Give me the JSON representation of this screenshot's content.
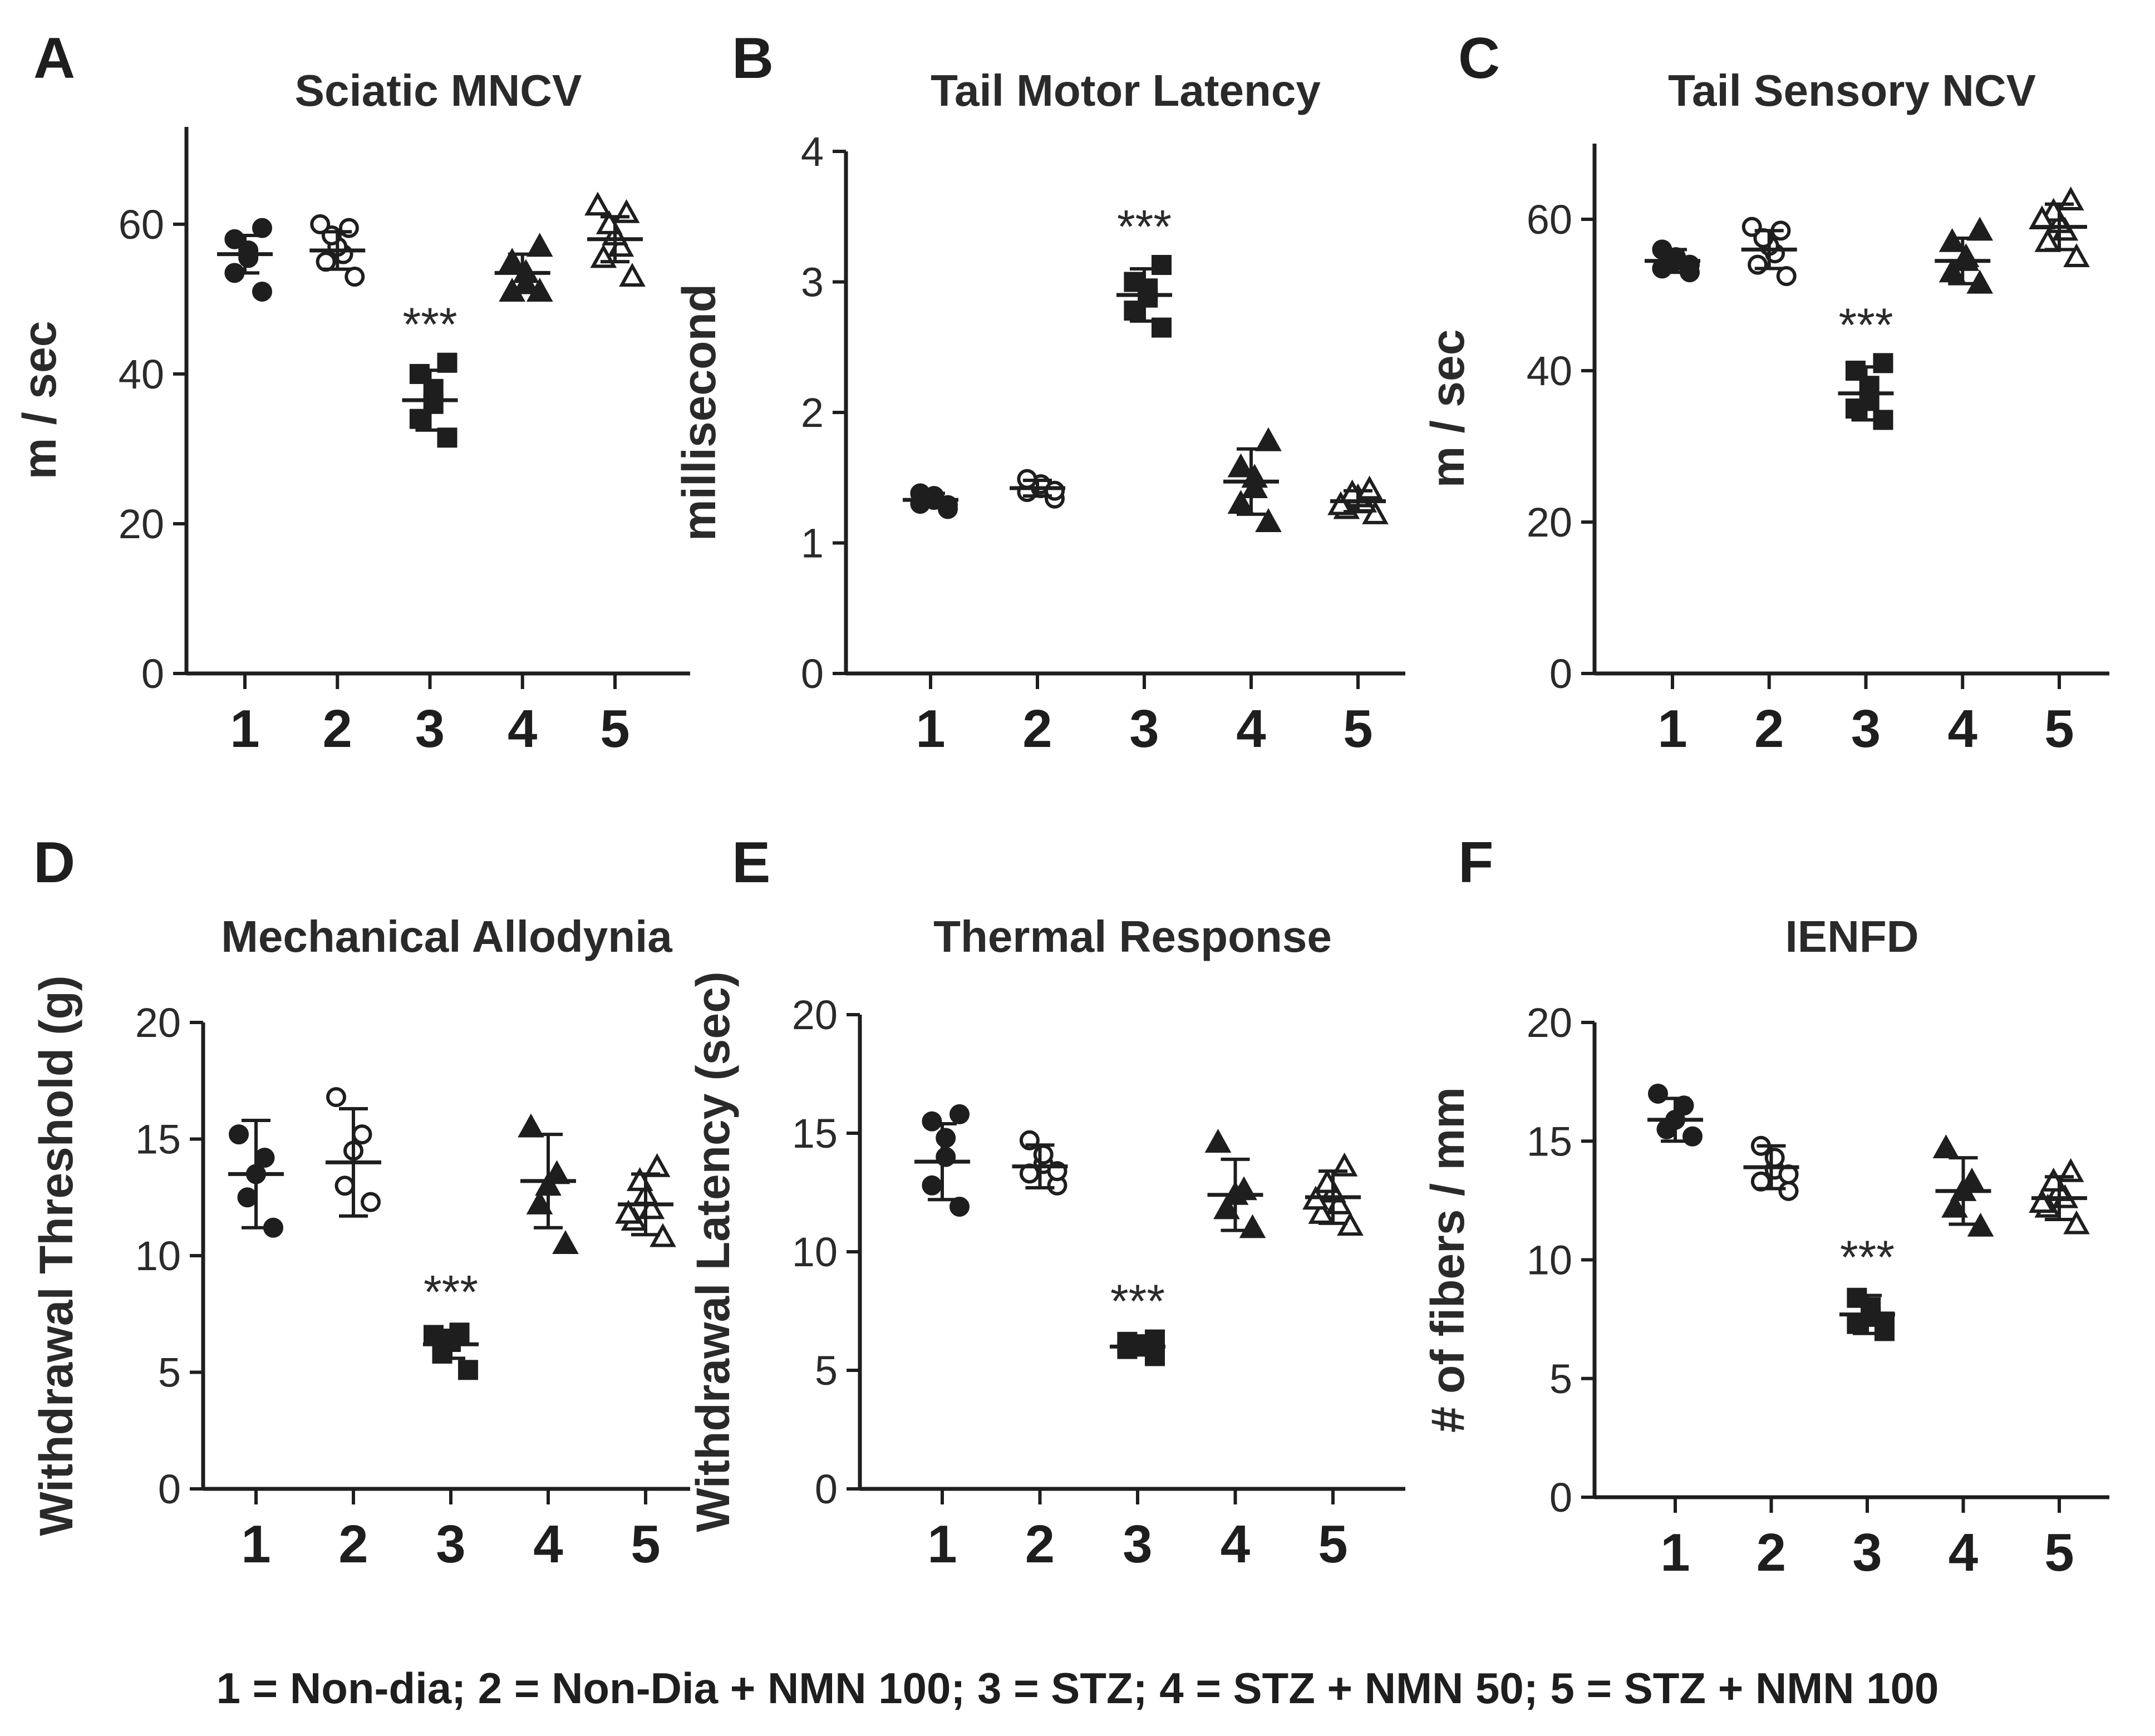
{
  "legend": "1 = Non-dia; 2 = Non-Dia + NMN 100; 3 = STZ; 4 = STZ + NMN 50; 5 = STZ + NMN 100",
  "colors": {
    "ink": "#1e1e1e",
    "background": "#ffffff"
  },
  "chart_data": [
    {
      "panel": "A",
      "type": "scatter",
      "title": "Sciatic MNCV",
      "ylabel": "m / sec",
      "xlabel": "",
      "ylim": [
        0,
        73
      ],
      "yticks": [
        0,
        20,
        40,
        60
      ],
      "groups": [
        {
          "label": "1",
          "marker": "filled-circle",
          "mean": 56.0,
          "sd": 2.5,
          "points": [
            51,
            53.5,
            55.5,
            56.5,
            58,
            59.5
          ]
        },
        {
          "label": "2",
          "marker": "open-circle",
          "mean": 56.5,
          "sd": 2.5,
          "points": [
            53,
            55,
            56,
            57,
            58.5,
            59.5,
            60
          ]
        },
        {
          "label": "3",
          "marker": "filled-square",
          "mean": 36.5,
          "sd": 4.0,
          "points": [
            31.5,
            34,
            36,
            38,
            40,
            41.5
          ]
        },
        {
          "label": "4",
          "marker": "filled-triangle",
          "mean": 53.5,
          "sd": 2.5,
          "points": [
            51,
            51,
            52,
            53.5,
            55,
            57
          ]
        },
        {
          "label": "5",
          "marker": "open-triangle",
          "mean": 58.0,
          "sd": 3.0,
          "points": [
            53,
            55.5,
            57,
            58.5,
            60,
            61.5,
            62.5
          ]
        }
      ],
      "significance": [
        {
          "group": "3",
          "text": "***"
        }
      ]
    },
    {
      "panel": "B",
      "type": "scatter",
      "title": "Tail Motor Latency",
      "ylabel": "millisecond",
      "xlabel": "",
      "ylim": [
        0,
        4
      ],
      "yticks": [
        0,
        1,
        2,
        3,
        4
      ],
      "groups": [
        {
          "label": "1",
          "marker": "filled-circle",
          "mean": 1.33,
          "sd": 0.05,
          "points": [
            1.26,
            1.3,
            1.33,
            1.36,
            1.38,
            1.29
          ]
        },
        {
          "label": "2",
          "marker": "open-circle",
          "mean": 1.42,
          "sd": 0.06,
          "points": [
            1.34,
            1.39,
            1.42,
            1.45,
            1.49,
            1.4
          ]
        },
        {
          "label": "3",
          "marker": "filled-square",
          "mean": 2.9,
          "sd": 0.2,
          "points": [
            2.65,
            2.78,
            2.88,
            2.95,
            3.0,
            3.13
          ]
        },
        {
          "label": "4",
          "marker": "filled-triangle",
          "mean": 1.47,
          "sd": 0.25,
          "points": [
            1.16,
            1.3,
            1.42,
            1.5,
            1.58,
            1.78
          ]
        },
        {
          "label": "5",
          "marker": "open-triangle",
          "mean": 1.32,
          "sd": 0.08,
          "points": [
            1.22,
            1.26,
            1.31,
            1.35,
            1.38,
            1.41,
            1.29
          ]
        }
      ],
      "significance": [
        {
          "group": "3",
          "text": "***"
        }
      ]
    },
    {
      "panel": "C",
      "type": "scatter",
      "title": "Tail Sensory NCV",
      "ylabel": "m / sec",
      "xlabel": "",
      "ylim": [
        0,
        70
      ],
      "yticks": [
        0,
        20,
        40,
        60
      ],
      "groups": [
        {
          "label": "1",
          "marker": "filled-circle",
          "mean": 54.5,
          "sd": 1.5,
          "points": [
            53,
            53.5,
            54.5,
            55,
            56,
            54
          ]
        },
        {
          "label": "2",
          "marker": "open-circle",
          "mean": 56.0,
          "sd": 2.5,
          "points": [
            52.5,
            54,
            55.5,
            56.5,
            57.5,
            58.5,
            59
          ]
        },
        {
          "label": "3",
          "marker": "filled-square",
          "mean": 37.0,
          "sd": 3.5,
          "points": [
            33.5,
            35,
            36,
            38,
            40,
            41
          ]
        },
        {
          "label": "4",
          "marker": "filled-triangle",
          "mean": 54.5,
          "sd": 3.0,
          "points": [
            51.5,
            53,
            54.5,
            55,
            57,
            58.5
          ]
        },
        {
          "label": "5",
          "marker": "open-triangle",
          "mean": 59.0,
          "sd": 3.0,
          "points": [
            55,
            57,
            58.5,
            59.5,
            61,
            62.5,
            60
          ]
        }
      ],
      "significance": [
        {
          "group": "3",
          "text": "***"
        }
      ]
    },
    {
      "panel": "D",
      "type": "scatter",
      "title": "Mechanical Allodynia",
      "ylabel": "Withdrawal Threshold (g)",
      "xlabel": "",
      "ylim": [
        0,
        20
      ],
      "yticks": [
        0,
        5,
        10,
        15,
        20
      ],
      "groups": [
        {
          "label": "1",
          "marker": "filled-circle",
          "mean": 13.5,
          "sd": 2.3,
          "points": [
            11.2,
            12.5,
            13.5,
            14.2,
            15.2
          ]
        },
        {
          "label": "2",
          "marker": "open-circle",
          "mean": 14.0,
          "sd": 2.3,
          "points": [
            12.3,
            13.0,
            14.5,
            15.2,
            16.8
          ]
        },
        {
          "label": "3",
          "marker": "filled-square",
          "mean": 6.2,
          "sd": 0.6,
          "points": [
            5.1,
            5.8,
            6.3,
            6.7,
            6.6
          ]
        },
        {
          "label": "4",
          "marker": "filled-triangle",
          "mean": 13.2,
          "sd": 2.0,
          "points": [
            10.5,
            12.2,
            13.0,
            13.5,
            15.5
          ]
        },
        {
          "label": "5",
          "marker": "open-triangle",
          "mean": 12.2,
          "sd": 1.3,
          "points": [
            10.8,
            11.5,
            12.0,
            12.6,
            13.2,
            13.8,
            11.8
          ]
        }
      ],
      "significance": [
        {
          "group": "3",
          "text": "***"
        }
      ]
    },
    {
      "panel": "E",
      "type": "scatter",
      "title": "Thermal Response",
      "ylabel": "Withdrawal Latency (sec)",
      "xlabel": "",
      "ylim": [
        0,
        20
      ],
      "yticks": [
        0,
        5,
        10,
        15,
        20
      ],
      "groups": [
        {
          "label": "1",
          "marker": "filled-circle",
          "mean": 13.8,
          "sd": 1.6,
          "points": [
            11.9,
            12.8,
            14.0,
            14.8,
            15.5,
            15.8
          ]
        },
        {
          "label": "2",
          "marker": "open-circle",
          "mean": 13.6,
          "sd": 0.9,
          "points": [
            12.8,
            13.3,
            13.7,
            14.1,
            14.7,
            13.4
          ]
        },
        {
          "label": "3",
          "marker": "filled-square",
          "mean": 6.0,
          "sd": 0.3,
          "points": [
            5.6,
            5.9,
            6.0,
            6.1,
            6.2,
            6.3
          ]
        },
        {
          "label": "4",
          "marker": "filled-triangle",
          "mean": 12.4,
          "sd": 1.5,
          "points": [
            11.0,
            11.8,
            12.4,
            12.6,
            14.6
          ]
        },
        {
          "label": "5",
          "marker": "open-triangle",
          "mean": 12.3,
          "sd": 1.1,
          "points": [
            11.1,
            11.6,
            12.0,
            12.5,
            12.9,
            13.6,
            12.2
          ]
        }
      ],
      "significance": [
        {
          "group": "3",
          "text": "***"
        }
      ]
    },
    {
      "panel": "F",
      "type": "scatter",
      "title": "IENFD",
      "ylabel": "# of fibers / mm",
      "xlabel": "",
      "ylim": [
        0,
        20
      ],
      "yticks": [
        0,
        5,
        10,
        15,
        20
      ],
      "groups": [
        {
          "label": "1",
          "marker": "filled-circle",
          "mean": 15.9,
          "sd": 0.9,
          "points": [
            15.2,
            15.5,
            15.9,
            16.5,
            17.0
          ]
        },
        {
          "label": "2",
          "marker": "open-circle",
          "mean": 13.9,
          "sd": 0.9,
          "points": [
            12.9,
            13.3,
            13.8,
            14.3,
            14.8,
            13.6
          ]
        },
        {
          "label": "3",
          "marker": "filled-square",
          "mean": 7.7,
          "sd": 0.8,
          "points": [
            7.0,
            7.3,
            7.6,
            8.0,
            8.4,
            7.4
          ]
        },
        {
          "label": "4",
          "marker": "filled-triangle",
          "mean": 12.9,
          "sd": 1.4,
          "points": [
            11.4,
            12.2,
            12.9,
            13.3,
            14.7
          ]
        },
        {
          "label": "5",
          "marker": "open-triangle",
          "mean": 12.6,
          "sd": 0.9,
          "points": [
            11.5,
            12.2,
            12.6,
            12.9,
            13.3,
            13.7,
            12.4
          ]
        }
      ],
      "significance": [
        {
          "group": "3",
          "text": "***"
        }
      ]
    }
  ]
}
